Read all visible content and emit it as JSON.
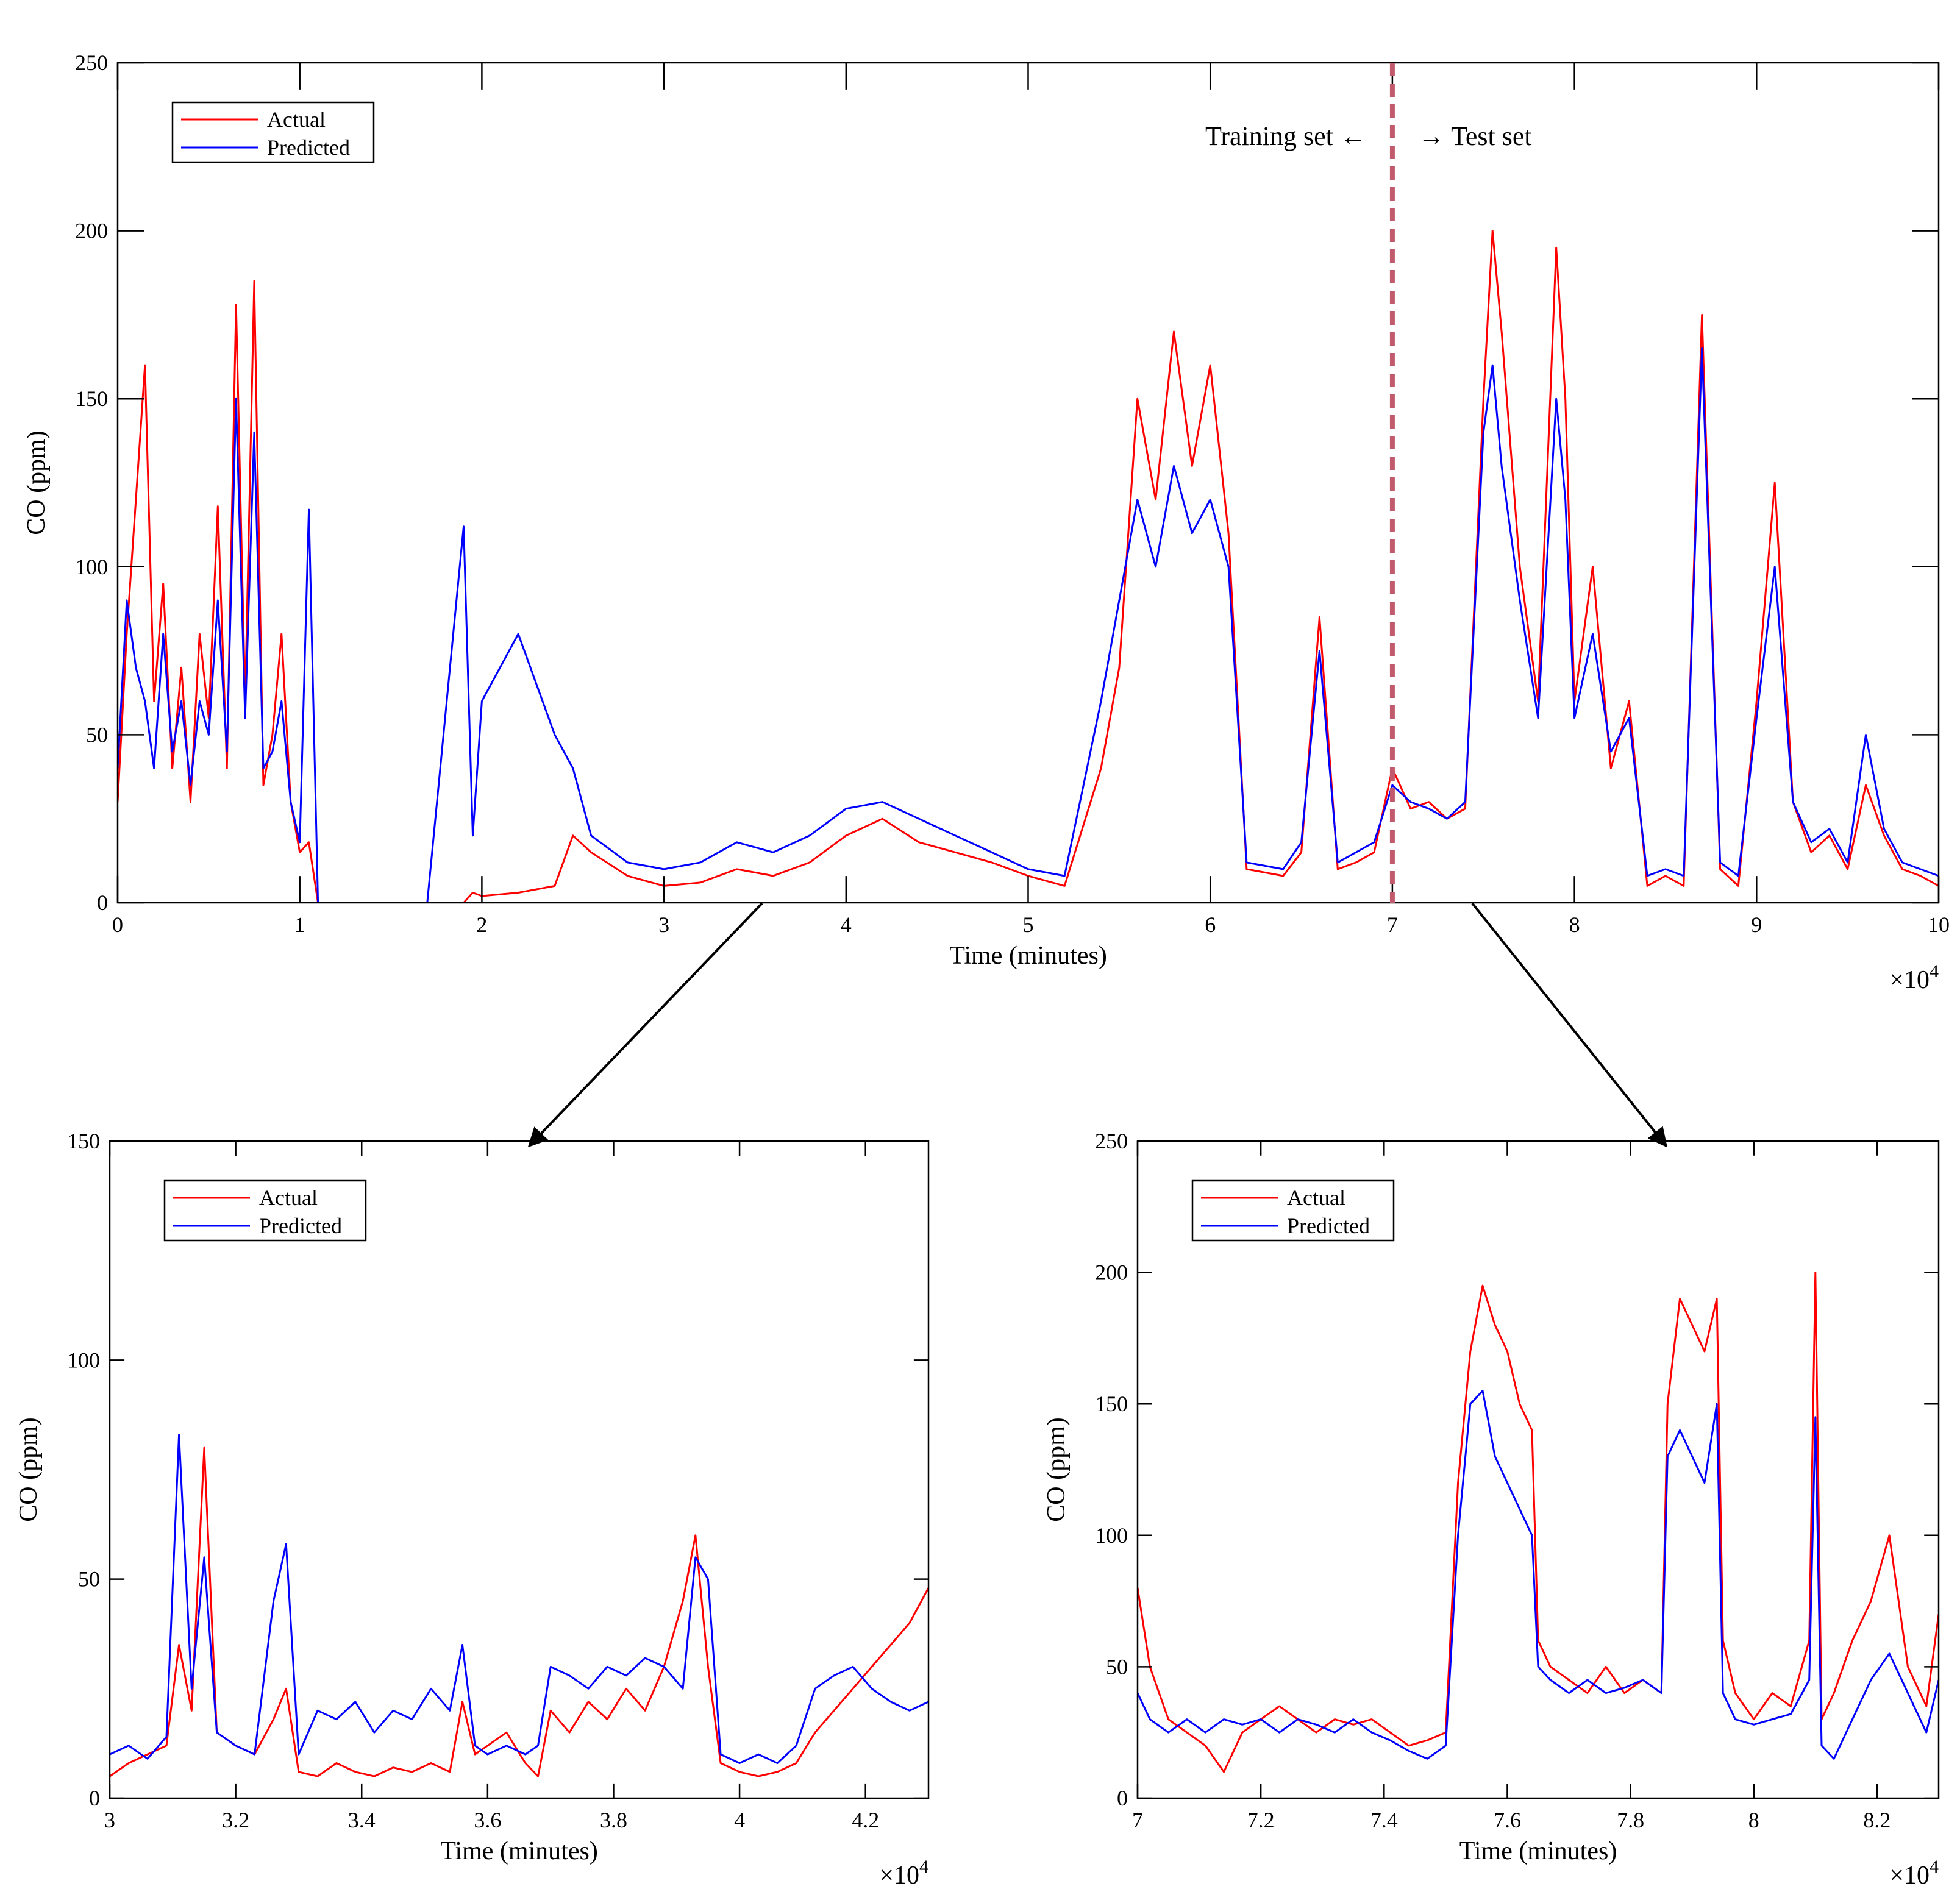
{
  "chart_data": [
    {
      "type": "line",
      "id": "main",
      "title": "",
      "xlabel": "Time (minutes)",
      "ylabel": "CO (ppm)",
      "xlim": [
        0,
        10
      ],
      "ylim": [
        0,
        250
      ],
      "x_multiplier": "×10",
      "x_multiplier_exp": "4",
      "x_ticks": [
        0,
        1,
        2,
        3,
        4,
        5,
        6,
        7,
        8,
        9,
        10
      ],
      "x_tick_labels": [
        "0",
        "1",
        "2",
        "3",
        "4",
        "5",
        "6",
        "7",
        "8",
        "9",
        "10"
      ],
      "y_ticks": [
        0,
        50,
        100,
        150,
        200,
        250
      ],
      "y_tick_labels": [
        "0",
        "50",
        "100",
        "150",
        "200",
        "250"
      ],
      "legend": {
        "position": "top-left",
        "entries": [
          "Actual",
          "Predicted"
        ]
      },
      "annotations": {
        "split_x": 7,
        "left_text": "Training set ←",
        "right_text": "→ Test set"
      },
      "series": [
        {
          "name": "Actual",
          "color": "#ff0000",
          "x": [
            0,
            0.05,
            0.1,
            0.15,
            0.2,
            0.25,
            0.3,
            0.35,
            0.4,
            0.45,
            0.5,
            0.55,
            0.6,
            0.65,
            0.7,
            0.75,
            0.8,
            0.85,
            0.9,
            0.95,
            1.0,
            1.05,
            1.1,
            1.3,
            1.5,
            1.7,
            1.9,
            1.95,
            2.0,
            2.2,
            2.4,
            2.5,
            2.6,
            2.8,
            3.0,
            3.2,
            3.4,
            3.6,
            3.8,
            4.0,
            4.2,
            4.4,
            4.6,
            4.8,
            5.0,
            5.2,
            5.4,
            5.5,
            5.6,
            5.7,
            5.8,
            5.9,
            6.0,
            6.1,
            6.2,
            6.4,
            6.5,
            6.6,
            6.7,
            6.8,
            6.9,
            7.0,
            7.1,
            7.2,
            7.3,
            7.4,
            7.5,
            7.55,
            7.6,
            7.7,
            7.8,
            7.9,
            7.95,
            8.0,
            8.1,
            8.2,
            8.3,
            8.4,
            8.5,
            8.6,
            8.7,
            8.8,
            8.9,
            9.0,
            9.1,
            9.2,
            9.3,
            9.4,
            9.5,
            9.6,
            9.7,
            9.8,
            9.9,
            10.0
          ],
          "y": [
            30,
            80,
            120,
            160,
            60,
            95,
            40,
            70,
            30,
            80,
            55,
            118,
            40,
            178,
            60,
            185,
            35,
            50,
            80,
            30,
            15,
            18,
            0,
            0,
            0,
            0,
            0,
            3,
            2,
            3,
            5,
            20,
            15,
            8,
            5,
            6,
            10,
            8,
            12,
            20,
            25,
            18,
            15,
            12,
            8,
            5,
            40,
            70,
            150,
            120,
            170,
            130,
            160,
            110,
            10,
            8,
            15,
            85,
            10,
            12,
            15,
            40,
            28,
            30,
            25,
            28,
            150,
            200,
            170,
            100,
            60,
            195,
            150,
            60,
            100,
            40,
            60,
            5,
            8,
            5,
            175,
            10,
            5,
            60,
            125,
            30,
            15,
            20,
            10,
            35,
            20,
            10,
            8,
            5
          ]
        },
        {
          "name": "Predicted",
          "color": "#0000ff",
          "x": [
            0,
            0.05,
            0.1,
            0.15,
            0.2,
            0.25,
            0.3,
            0.35,
            0.4,
            0.45,
            0.5,
            0.55,
            0.6,
            0.65,
            0.7,
            0.75,
            0.8,
            0.85,
            0.9,
            0.95,
            1.0,
            1.05,
            1.1,
            1.3,
            1.5,
            1.7,
            1.9,
            1.95,
            2.0,
            2.2,
            2.4,
            2.5,
            2.6,
            2.8,
            3.0,
            3.2,
            3.4,
            3.6,
            3.8,
            4.0,
            4.2,
            4.4,
            4.6,
            4.8,
            5.0,
            5.2,
            5.4,
            5.5,
            5.6,
            5.7,
            5.8,
            5.9,
            6.0,
            6.1,
            6.2,
            6.4,
            6.5,
            6.6,
            6.7,
            6.8,
            6.9,
            7.0,
            7.1,
            7.2,
            7.3,
            7.4,
            7.5,
            7.55,
            7.6,
            7.7,
            7.8,
            7.9,
            7.95,
            8.0,
            8.1,
            8.2,
            8.3,
            8.4,
            8.5,
            8.6,
            8.7,
            8.8,
            8.9,
            9.0,
            9.1,
            9.2,
            9.3,
            9.4,
            9.5,
            9.6,
            9.7,
            9.8,
            9.9,
            10.0
          ],
          "y": [
            40,
            90,
            70,
            60,
            40,
            80,
            45,
            60,
            35,
            60,
            50,
            90,
            45,
            150,
            55,
            140,
            40,
            45,
            60,
            30,
            18,
            117,
            0,
            0,
            0,
            0,
            112,
            20,
            60,
            80,
            50,
            40,
            20,
            12,
            10,
            12,
            18,
            15,
            20,
            28,
            30,
            25,
            20,
            15,
            10,
            8,
            60,
            90,
            120,
            100,
            130,
            110,
            120,
            100,
            12,
            10,
            18,
            75,
            12,
            15,
            18,
            35,
            30,
            28,
            25,
            30,
            140,
            160,
            130,
            90,
            55,
            150,
            120,
            55,
            80,
            45,
            55,
            8,
            10,
            8,
            165,
            12,
            8,
            55,
            100,
            30,
            18,
            22,
            12,
            50,
            22,
            12,
            10,
            8
          ]
        }
      ]
    },
    {
      "type": "line",
      "id": "zoom_left",
      "title": "",
      "xlabel": "Time (minutes)",
      "ylabel": "CO (ppm)",
      "xlim": [
        3,
        4.3
      ],
      "ylim": [
        0,
        150
      ],
      "x_multiplier": "×10",
      "x_multiplier_exp": "4",
      "x_ticks": [
        3,
        3.2,
        3.4,
        3.6,
        3.8,
        4,
        4.2
      ],
      "x_tick_labels": [
        "3",
        "3.2",
        "3.4",
        "3.6",
        "3.8",
        "4",
        "4.2"
      ],
      "y_ticks": [
        0,
        50,
        100,
        150
      ],
      "y_tick_labels": [
        "0",
        "50",
        "100",
        "150"
      ],
      "legend": {
        "position": "top-left",
        "entries": [
          "Actual",
          "Predicted"
        ]
      },
      "series": [
        {
          "name": "Actual",
          "color": "#ff0000",
          "x": [
            3.0,
            3.03,
            3.06,
            3.09,
            3.11,
            3.13,
            3.15,
            3.17,
            3.2,
            3.23,
            3.26,
            3.28,
            3.3,
            3.33,
            3.36,
            3.39,
            3.42,
            3.45,
            3.48,
            3.51,
            3.54,
            3.56,
            3.58,
            3.6,
            3.63,
            3.66,
            3.68,
            3.7,
            3.73,
            3.76,
            3.79,
            3.82,
            3.85,
            3.88,
            3.91,
            3.93,
            3.95,
            3.97,
            4.0,
            4.03,
            4.06,
            4.09,
            4.12,
            4.15,
            4.18,
            4.21,
            4.24,
            4.27,
            4.3
          ],
          "y": [
            5,
            8,
            10,
            12,
            35,
            20,
            80,
            15,
            12,
            10,
            18,
            25,
            6,
            5,
            8,
            6,
            5,
            7,
            6,
            8,
            6,
            22,
            10,
            12,
            15,
            8,
            5,
            20,
            15,
            22,
            18,
            25,
            20,
            30,
            45,
            60,
            30,
            8,
            6,
            5,
            6,
            8,
            15,
            20,
            25,
            30,
            35,
            40,
            48
          ]
        },
        {
          "name": "Predicted",
          "color": "#0000ff",
          "x": [
            3.0,
            3.03,
            3.06,
            3.09,
            3.11,
            3.13,
            3.15,
            3.17,
            3.2,
            3.23,
            3.26,
            3.28,
            3.3,
            3.33,
            3.36,
            3.39,
            3.42,
            3.45,
            3.48,
            3.51,
            3.54,
            3.56,
            3.58,
            3.6,
            3.63,
            3.66,
            3.68,
            3.7,
            3.73,
            3.76,
            3.79,
            3.82,
            3.85,
            3.88,
            3.91,
            3.93,
            3.95,
            3.97,
            4.0,
            4.03,
            4.06,
            4.09,
            4.12,
            4.15,
            4.18,
            4.21,
            4.24,
            4.27,
            4.3
          ],
          "y": [
            10,
            12,
            9,
            14,
            83,
            25,
            55,
            15,
            12,
            10,
            45,
            58,
            10,
            20,
            18,
            22,
            15,
            20,
            18,
            25,
            20,
            35,
            12,
            10,
            12,
            10,
            12,
            30,
            28,
            25,
            30,
            28,
            32,
            30,
            25,
            55,
            50,
            10,
            8,
            10,
            8,
            12,
            25,
            28,
            30,
            25,
            22,
            20,
            22
          ]
        }
      ]
    },
    {
      "type": "line",
      "id": "zoom_right",
      "title": "",
      "xlabel": "Time (minutes)",
      "ylabel": "CO (ppm)",
      "xlim": [
        7,
        8.3
      ],
      "ylim": [
        0,
        250
      ],
      "x_multiplier": "×10",
      "x_multiplier_exp": "4",
      "x_ticks": [
        7,
        7.2,
        7.4,
        7.6,
        7.8,
        8,
        8.2
      ],
      "x_tick_labels": [
        "7",
        "7.2",
        "7.4",
        "7.6",
        "7.8",
        "8",
        "8.2"
      ],
      "y_ticks": [
        0,
        50,
        100,
        150,
        200,
        250
      ],
      "y_tick_labels": [
        "0",
        "50",
        "100",
        "150",
        "200",
        "250"
      ],
      "legend": {
        "position": "top-left",
        "entries": [
          "Actual",
          "Predicted"
        ]
      },
      "series": [
        {
          "name": "Actual",
          "color": "#ff0000",
          "x": [
            7.0,
            7.02,
            7.05,
            7.08,
            7.11,
            7.14,
            7.17,
            7.2,
            7.23,
            7.26,
            7.29,
            7.32,
            7.35,
            7.38,
            7.41,
            7.44,
            7.47,
            7.5,
            7.52,
            7.54,
            7.56,
            7.58,
            7.6,
            7.62,
            7.64,
            7.65,
            7.67,
            7.7,
            7.73,
            7.76,
            7.79,
            7.82,
            7.85,
            7.86,
            7.88,
            7.9,
            7.92,
            7.94,
            7.95,
            7.97,
            8.0,
            8.03,
            8.06,
            8.09,
            8.1,
            8.11,
            8.13,
            8.16,
            8.19,
            8.22,
            8.25,
            8.28,
            8.3
          ],
          "y": [
            80,
            50,
            30,
            25,
            20,
            10,
            25,
            30,
            35,
            30,
            25,
            30,
            28,
            30,
            25,
            20,
            22,
            25,
            120,
            170,
            195,
            180,
            170,
            150,
            140,
            60,
            50,
            45,
            40,
            50,
            40,
            45,
            40,
            150,
            190,
            180,
            170,
            190,
            60,
            40,
            30,
            40,
            35,
            60,
            200,
            30,
            40,
            60,
            75,
            100,
            50,
            35,
            70
          ]
        },
        {
          "name": "Predicted",
          "color": "#0000ff",
          "x": [
            7.0,
            7.02,
            7.05,
            7.08,
            7.11,
            7.14,
            7.17,
            7.2,
            7.23,
            7.26,
            7.29,
            7.32,
            7.35,
            7.38,
            7.41,
            7.44,
            7.47,
            7.5,
            7.52,
            7.54,
            7.56,
            7.58,
            7.6,
            7.62,
            7.64,
            7.65,
            7.67,
            7.7,
            7.73,
            7.76,
            7.79,
            7.82,
            7.85,
            7.86,
            7.88,
            7.9,
            7.92,
            7.94,
            7.95,
            7.97,
            8.0,
            8.03,
            8.06,
            8.09,
            8.1,
            8.11,
            8.13,
            8.16,
            8.19,
            8.22,
            8.25,
            8.28,
            8.3
          ],
          "y": [
            40,
            30,
            25,
            30,
            25,
            30,
            28,
            30,
            25,
            30,
            28,
            25,
            30,
            25,
            22,
            18,
            15,
            20,
            100,
            150,
            155,
            130,
            120,
            110,
            100,
            50,
            45,
            40,
            45,
            40,
            42,
            45,
            40,
            130,
            140,
            130,
            120,
            150,
            40,
            30,
            28,
            30,
            32,
            45,
            145,
            20,
            15,
            30,
            45,
            55,
            40,
            25,
            45
          ]
        }
      ]
    }
  ]
}
